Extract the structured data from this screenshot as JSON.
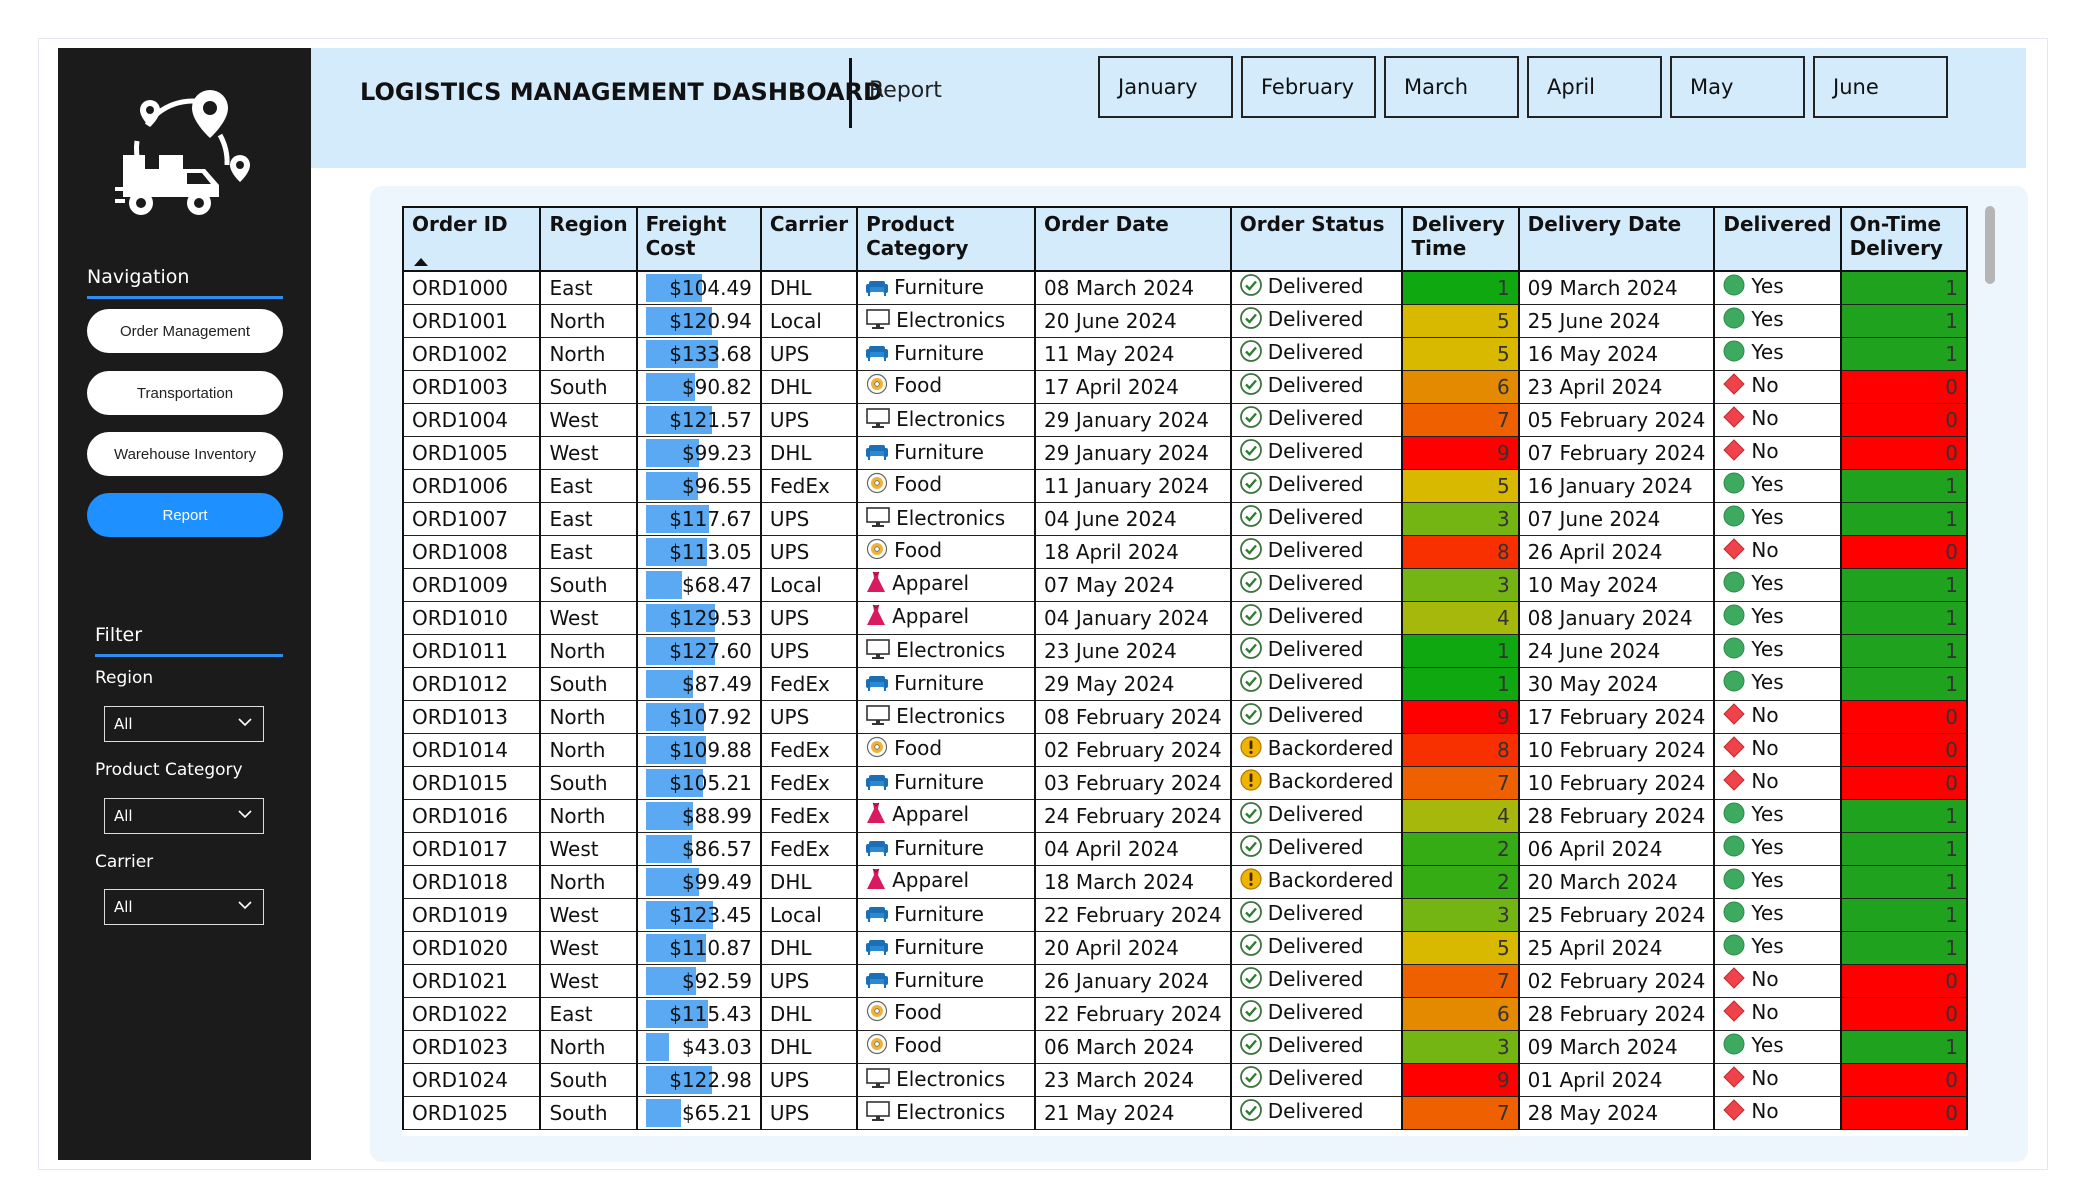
{
  "header": {
    "title": "LOGISTICS MANAGEMENT DASHBOARD",
    "page_label": "Report",
    "months": [
      "January",
      "February",
      "March",
      "April",
      "May",
      "June"
    ]
  },
  "sidebar": {
    "navigation_title": "Navigation",
    "nav_items": [
      "Order Management",
      "Transportation",
      "Warehouse Inventory",
      "Report"
    ],
    "active_nav": "Report",
    "filter_title": "Filter",
    "filters": [
      {
        "label": "Region",
        "value": "All"
      },
      {
        "label": "Product Category",
        "value": "All"
      },
      {
        "label": "Carrier",
        "value": "All"
      }
    ]
  },
  "table": {
    "columns": [
      "Order ID",
      "Region",
      "Freight Cost",
      "Carrier",
      "Product Category",
      "Order Date",
      "Order Status",
      "Delivery Time",
      "Delivery Date",
      "Delivered",
      "On-Time Delivery"
    ],
    "sorted_column": "Order ID",
    "rows": [
      [
        "ORD1000",
        "East",
        "$104.49",
        "DHL",
        "Furniture",
        "08 March 2024",
        "Delivered",
        "1",
        "09 March 2024",
        "Yes",
        "1"
      ],
      [
        "ORD1001",
        "North",
        "$120.94",
        "Local",
        "Electronics",
        "20 June 2024",
        "Delivered",
        "5",
        "25 June 2024",
        "Yes",
        "1"
      ],
      [
        "ORD1002",
        "North",
        "$133.68",
        "UPS",
        "Furniture",
        "11 May 2024",
        "Delivered",
        "5",
        "16 May 2024",
        "Yes",
        "1"
      ],
      [
        "ORD1003",
        "South",
        "$90.82",
        "DHL",
        "Food",
        "17 April 2024",
        "Delivered",
        "6",
        "23 April 2024",
        "No",
        "0"
      ],
      [
        "ORD1004",
        "West",
        "$121.57",
        "UPS",
        "Electronics",
        "29 January 2024",
        "Delivered",
        "7",
        "05 February 2024",
        "No",
        "0"
      ],
      [
        "ORD1005",
        "West",
        "$99.23",
        "DHL",
        "Furniture",
        "29 January 2024",
        "Delivered",
        "9",
        "07 February 2024",
        "No",
        "0"
      ],
      [
        "ORD1006",
        "East",
        "$96.55",
        "FedEx",
        "Food",
        "11 January 2024",
        "Delivered",
        "5",
        "16 January 2024",
        "Yes",
        "1"
      ],
      [
        "ORD1007",
        "East",
        "$117.67",
        "UPS",
        "Electronics",
        "04 June 2024",
        "Delivered",
        "3",
        "07 June 2024",
        "Yes",
        "1"
      ],
      [
        "ORD1008",
        "East",
        "$113.05",
        "UPS",
        "Food",
        "18 April 2024",
        "Delivered",
        "8",
        "26 April 2024",
        "No",
        "0"
      ],
      [
        "ORD1009",
        "South",
        "$68.47",
        "Local",
        "Apparel",
        "07 May 2024",
        "Delivered",
        "3",
        "10 May 2024",
        "Yes",
        "1"
      ],
      [
        "ORD1010",
        "West",
        "$129.53",
        "UPS",
        "Apparel",
        "04 January 2024",
        "Delivered",
        "4",
        "08 January 2024",
        "Yes",
        "1"
      ],
      [
        "ORD1011",
        "North",
        "$127.60",
        "UPS",
        "Electronics",
        "23 June 2024",
        "Delivered",
        "1",
        "24 June 2024",
        "Yes",
        "1"
      ],
      [
        "ORD1012",
        "South",
        "$87.49",
        "FedEx",
        "Furniture",
        "29 May 2024",
        "Delivered",
        "1",
        "30 May 2024",
        "Yes",
        "1"
      ],
      [
        "ORD1013",
        "North",
        "$107.92",
        "UPS",
        "Electronics",
        "08 February 2024",
        "Delivered",
        "9",
        "17 February 2024",
        "No",
        "0"
      ],
      [
        "ORD1014",
        "North",
        "$109.88",
        "FedEx",
        "Food",
        "02 February 2024",
        "Backordered",
        "8",
        "10 February 2024",
        "No",
        "0"
      ],
      [
        "ORD1015",
        "South",
        "$105.21",
        "FedEx",
        "Furniture",
        "03 February 2024",
        "Backordered",
        "7",
        "10 February 2024",
        "No",
        "0"
      ],
      [
        "ORD1016",
        "North",
        "$88.99",
        "FedEx",
        "Apparel",
        "24 February 2024",
        "Delivered",
        "4",
        "28 February 2024",
        "Yes",
        "1"
      ],
      [
        "ORD1017",
        "West",
        "$86.57",
        "FedEx",
        "Furniture",
        "04 April 2024",
        "Delivered",
        "2",
        "06 April 2024",
        "Yes",
        "1"
      ],
      [
        "ORD1018",
        "North",
        "$99.49",
        "DHL",
        "Apparel",
        "18 March 2024",
        "Backordered",
        "2",
        "20 March 2024",
        "Yes",
        "1"
      ],
      [
        "ORD1019",
        "West",
        "$123.45",
        "Local",
        "Furniture",
        "22 February 2024",
        "Delivered",
        "3",
        "25 February 2024",
        "Yes",
        "1"
      ],
      [
        "ORD1020",
        "West",
        "$110.87",
        "DHL",
        "Furniture",
        "20 April 2024",
        "Delivered",
        "5",
        "25 April 2024",
        "Yes",
        "1"
      ],
      [
        "ORD1021",
        "West",
        "$92.59",
        "UPS",
        "Furniture",
        "26 January 2024",
        "Delivered",
        "7",
        "02 February 2024",
        "No",
        "0"
      ],
      [
        "ORD1022",
        "East",
        "$115.43",
        "DHL",
        "Food",
        "22 February 2024",
        "Delivered",
        "6",
        "28 February 2024",
        "No",
        "0"
      ],
      [
        "ORD1023",
        "North",
        "$43.03",
        "DHL",
        "Food",
        "06 March 2024",
        "Delivered",
        "3",
        "09 March 2024",
        "Yes",
        "1"
      ],
      [
        "ORD1024",
        "South",
        "$122.98",
        "UPS",
        "Electronics",
        "23 March 2024",
        "Delivered",
        "9",
        "01 April 2024",
        "No",
        "0"
      ],
      [
        "ORD1025",
        "South",
        "$65.21",
        "UPS",
        "Electronics",
        "21 May 2024",
        "Delivered",
        "7",
        "28 May 2024",
        "No",
        "0"
      ]
    ]
  },
  "colors": {
    "header_band": "#d3ebfb",
    "sidebar": "#1b1b1b",
    "accent": "#1e90ff",
    "freight_bar": "#5aa9f2",
    "on_time_yes": "#1fa31f",
    "on_time_no": "#ff0000",
    "delivery_time_scale": [
      "#10a810",
      "#35ab14",
      "#74b413",
      "#a6b80c",
      "#d9b900",
      "#e48a00",
      "#ef6000",
      "#f83000",
      "#ff0000"
    ]
  },
  "icons": {
    "Furniture": "sofa-icon",
    "Electronics": "monitor-icon",
    "Food": "donut-icon",
    "Apparel": "dress-icon",
    "Delivered": "check-circle-icon",
    "Backordered": "exclamation-circle-icon",
    "Yes": "green-circle-icon",
    "No": "red-diamond-icon"
  }
}
